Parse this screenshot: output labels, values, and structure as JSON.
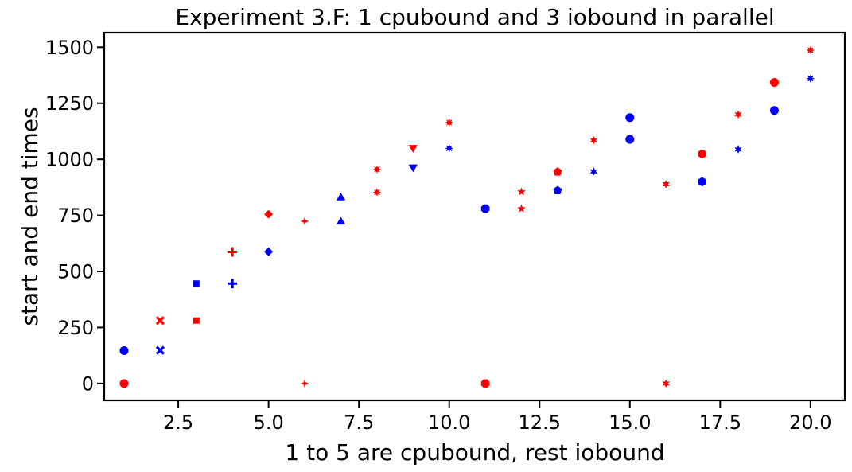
{
  "chart_data": {
    "type": "scatter",
    "title": "Experiment 3.F: 1 cpubound and 3 iobound in parallel",
    "xlabel": "1 to 5 are cpubound, rest iobound",
    "ylabel": "start and end times",
    "xlim": [
      0.45,
      20.95
    ],
    "ylim": [
      -75,
      1565
    ],
    "xticks": [
      2.5,
      5.0,
      7.5,
      10.0,
      12.5,
      15.0,
      17.5,
      20.0
    ],
    "xtick_labels": [
      "2.5",
      "5.0",
      "7.5",
      "10.0",
      "12.5",
      "15.0",
      "17.5",
      "20.0"
    ],
    "yticks": [
      0,
      250,
      500,
      750,
      1000,
      1250,
      1500
    ],
    "ytick_labels": [
      "0",
      "250",
      "500",
      "750",
      "1000",
      "1250",
      "1500"
    ],
    "grid": false,
    "colors": {
      "start": "#ff0000",
      "end": "#0000ff"
    },
    "points": [
      {
        "x": 1,
        "y": 0,
        "color": "#ff0000",
        "marker": "circle"
      },
      {
        "x": 1,
        "y": 147,
        "color": "#0000ff",
        "marker": "circle"
      },
      {
        "x": 2,
        "y": 281,
        "color": "#ff0000",
        "marker": "x"
      },
      {
        "x": 2,
        "y": 148,
        "color": "#0000ff",
        "marker": "x"
      },
      {
        "x": 3,
        "y": 281,
        "color": "#ff0000",
        "marker": "square"
      },
      {
        "x": 3,
        "y": 446,
        "color": "#0000ff",
        "marker": "square"
      },
      {
        "x": 4,
        "y": 587,
        "color": "#ff0000",
        "marker": "plus"
      },
      {
        "x": 4,
        "y": 446,
        "color": "#0000ff",
        "marker": "plus"
      },
      {
        "x": 5,
        "y": 755,
        "color": "#ff0000",
        "marker": "diamond"
      },
      {
        "x": 5,
        "y": 588,
        "color": "#0000ff",
        "marker": "diamond"
      },
      {
        "x": 6,
        "y": 0,
        "color": "#ff0000",
        "marker": "star4"
      },
      {
        "x": 6,
        "y": 724,
        "color": "#ff0000",
        "marker": "star4"
      },
      {
        "x": 7,
        "y": 724,
        "color": "#0000ff",
        "marker": "triangle-up"
      },
      {
        "x": 7,
        "y": 832,
        "color": "#0000ff",
        "marker": "triangle-up"
      },
      {
        "x": 8,
        "y": 853,
        "color": "#ff0000",
        "marker": "star8"
      },
      {
        "x": 8,
        "y": 955,
        "color": "#ff0000",
        "marker": "star8"
      },
      {
        "x": 9,
        "y": 1049,
        "color": "#ff0000",
        "marker": "triangle-down"
      },
      {
        "x": 9,
        "y": 962,
        "color": "#0000ff",
        "marker": "triangle-down"
      },
      {
        "x": 10,
        "y": 1164,
        "color": "#ff0000",
        "marker": "star8"
      },
      {
        "x": 10,
        "y": 1049,
        "color": "#0000ff",
        "marker": "star8"
      },
      {
        "x": 11,
        "y": 0,
        "color": "#ff0000",
        "marker": "octagon"
      },
      {
        "x": 11,
        "y": 780,
        "color": "#0000ff",
        "marker": "octagon"
      },
      {
        "x": 12,
        "y": 780,
        "color": "#ff0000",
        "marker": "star5"
      },
      {
        "x": 12,
        "y": 855,
        "color": "#ff0000",
        "marker": "star5"
      },
      {
        "x": 13,
        "y": 944,
        "color": "#ff0000",
        "marker": "pentagon"
      },
      {
        "x": 13,
        "y": 861,
        "color": "#0000ff",
        "marker": "pentagon"
      },
      {
        "x": 14,
        "y": 1085,
        "color": "#ff0000",
        "marker": "star6"
      },
      {
        "x": 14,
        "y": 946,
        "color": "#0000ff",
        "marker": "star6"
      },
      {
        "x": 15,
        "y": 1089,
        "color": "#0000ff",
        "marker": "circle"
      },
      {
        "x": 15,
        "y": 1186,
        "color": "#0000ff",
        "marker": "circle"
      },
      {
        "x": 16,
        "y": 0,
        "color": "#ff0000",
        "marker": "star6"
      },
      {
        "x": 16,
        "y": 889,
        "color": "#ff0000",
        "marker": "star6"
      },
      {
        "x": 17,
        "y": 1024,
        "color": "#ff0000",
        "marker": "hexagon"
      },
      {
        "x": 17,
        "y": 900,
        "color": "#0000ff",
        "marker": "hexagon"
      },
      {
        "x": 18,
        "y": 1200,
        "color": "#ff0000",
        "marker": "star6"
      },
      {
        "x": 18,
        "y": 1044,
        "color": "#0000ff",
        "marker": "star6"
      },
      {
        "x": 19,
        "y": 1343,
        "color": "#ff0000",
        "marker": "circle"
      },
      {
        "x": 19,
        "y": 1218,
        "color": "#0000ff",
        "marker": "circle"
      },
      {
        "x": 20,
        "y": 1487,
        "color": "#ff0000",
        "marker": "star8"
      },
      {
        "x": 20,
        "y": 1360,
        "color": "#0000ff",
        "marker": "star8"
      }
    ]
  }
}
